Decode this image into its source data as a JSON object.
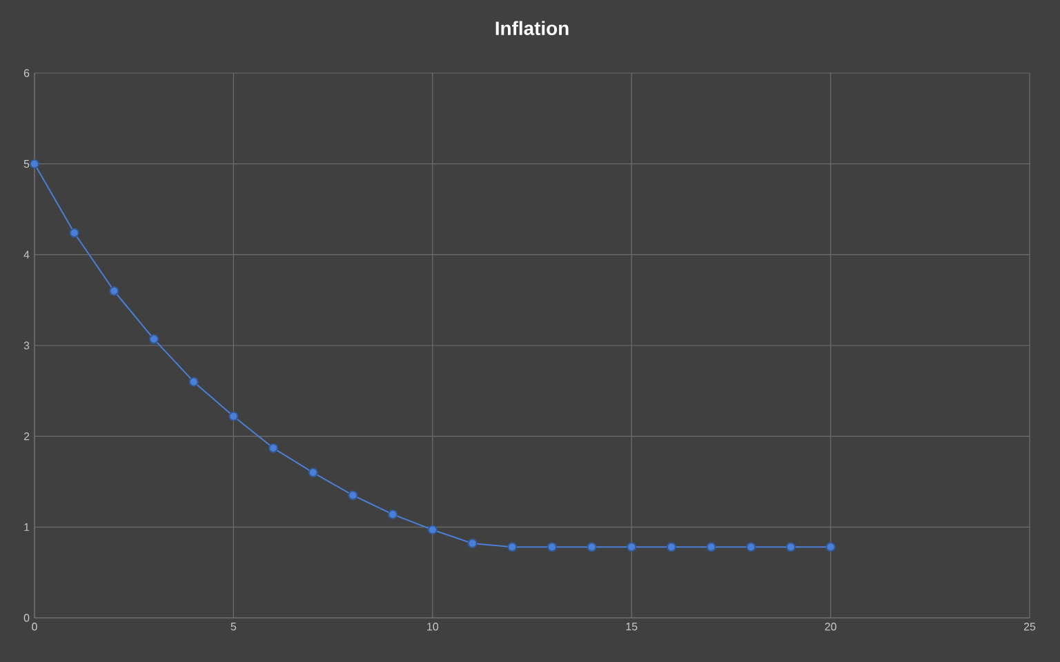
{
  "chart_data": {
    "type": "line",
    "title": "Inflation",
    "x": [
      0,
      1,
      2,
      3,
      4,
      5,
      6,
      7,
      8,
      9,
      10,
      11,
      12,
      13,
      14,
      15,
      16,
      17,
      18,
      19,
      20
    ],
    "series": [
      {
        "color": "#4a7fd8",
        "values": [
          5.0,
          4.24,
          3.6,
          3.07,
          2.6,
          2.22,
          1.87,
          1.6,
          1.35,
          1.14,
          0.97,
          0.82,
          0.78,
          0.78,
          0.78,
          0.78,
          0.78,
          0.78,
          0.78,
          0.78,
          0.78
        ]
      }
    ],
    "xlim": [
      0,
      25
    ],
    "ylim": [
      0,
      6
    ],
    "xticks": [
      0,
      5,
      10,
      15,
      20,
      25
    ],
    "yticks": [
      0,
      1,
      2,
      3,
      4,
      5,
      6
    ],
    "grid": true,
    "marker": "circle",
    "line_style": "solid"
  }
}
